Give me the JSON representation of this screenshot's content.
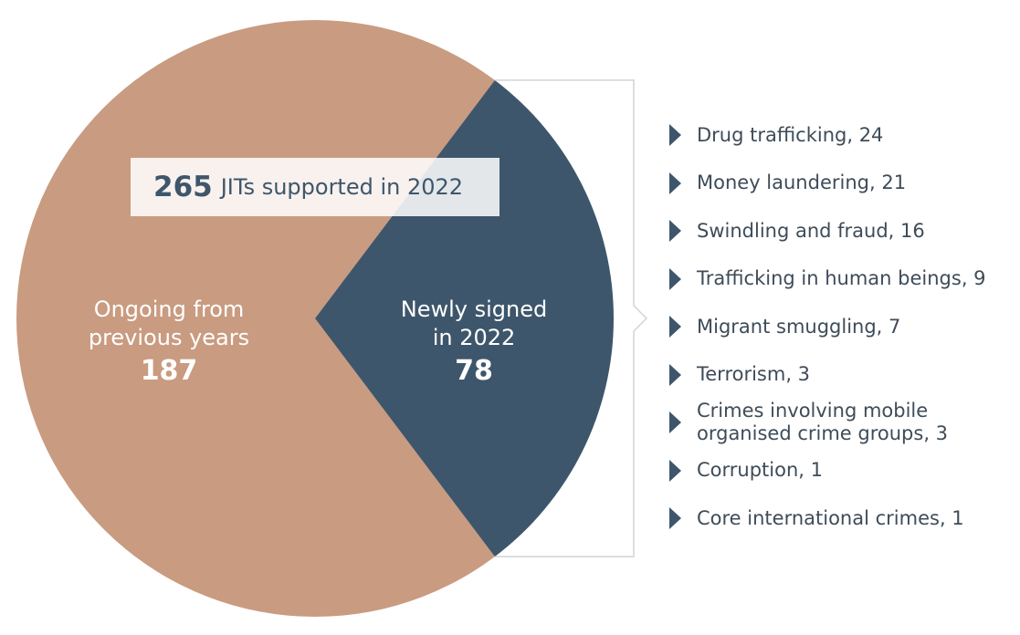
{
  "chart_data": {
    "type": "pie",
    "total": {
      "value": "265",
      "label": "JITs supported in 2022"
    },
    "slices": [
      {
        "name": "Ongoing from previous years",
        "line1": "Ongoing from",
        "line2": "previous years",
        "value": 187,
        "color": "#c99b80"
      },
      {
        "name": "Newly signed in 2022",
        "line1": "Newly signed",
        "line2": "in 2022",
        "value": 78,
        "color": "#3e566b"
      }
    ],
    "breakdown": {
      "of": "Newly signed in 2022",
      "items": [
        {
          "label": "Drug trafficking, 24",
          "value": 24
        },
        {
          "label": "Money laundering, 21",
          "value": 21
        },
        {
          "label": "Swindling and fraud, 16",
          "value": 16
        },
        {
          "label": "Trafficking in human beings, 9",
          "value": 9
        },
        {
          "label": "Migrant smuggling, 7",
          "value": 7
        },
        {
          "label": "Terrorism, 3",
          "value": 3
        },
        {
          "label": "Crimes involving mobile organised crime groups, 3",
          "line1": "Crimes involving mobile",
          "line2": "organised crime groups, 3",
          "value": 3
        },
        {
          "label": "Corruption, 1",
          "value": 1
        },
        {
          "label": "Core international crimes, 1",
          "value": 1
        }
      ]
    }
  },
  "colors": {
    "bracket": "#d0d4d8",
    "text_dark": "#3e4c59",
    "accent": "#3e566b"
  }
}
